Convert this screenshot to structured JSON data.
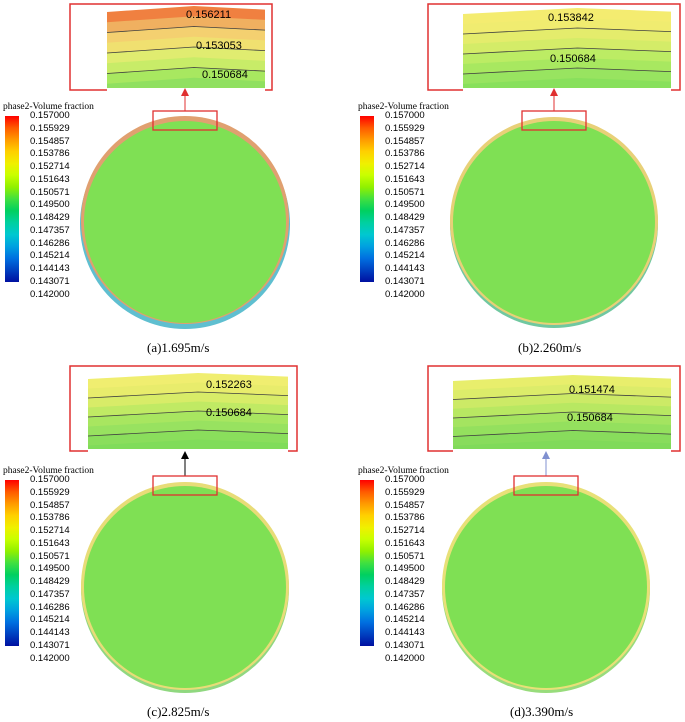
{
  "legend": {
    "title": "phase2-Volume fraction",
    "ticks": [
      "0.157000",
      "0.155929",
      "0.154857",
      "0.153786",
      "0.152714",
      "0.151643",
      "0.150571",
      "0.149500",
      "0.148429",
      "0.147357",
      "0.146286",
      "0.145214",
      "0.144143",
      "0.143071",
      "0.142000"
    ],
    "colors": [
      "#ff0000",
      "#ff5a00",
      "#ff9a00",
      "#ffd000",
      "#f0f000",
      "#c8ff00",
      "#90f000",
      "#40e040",
      "#00d060",
      "#00d0a0",
      "#00c8d0",
      "#00a0e0",
      "#0070e0",
      "#0040c0",
      "#0010a0"
    ]
  },
  "panels": [
    {
      "caption": "(a)1.695m/s",
      "zoom_labels": [
        "0.156211",
        "0.153053",
        "0.150684"
      ],
      "arrow_color": "#e03030",
      "zoom_bands": [
        "#f08040",
        "#f0b060",
        "#f4d070",
        "#f0e070",
        "#e0ec70",
        "#c8ec68",
        "#a8e860",
        "#90e060"
      ]
    },
    {
      "caption": "(b)2.260m/s",
      "zoom_labels": [
        "0.153842",
        "0.150684"
      ],
      "arrow_color": "#e03030",
      "zoom_bands": [
        "#f4ec70",
        "#f0ec70",
        "#e4ec6c",
        "#d4ec68",
        "#bcec64",
        "#a8e860",
        "#98e460",
        "#88e05c"
      ]
    },
    {
      "caption": "(c)2.825m/s",
      "zoom_labels": [
        "0.152263",
        "0.150684"
      ],
      "arrow_color": "#000000",
      "zoom_bands": [
        "#f0ee70",
        "#e8ec6c",
        "#d8ec68",
        "#c0ea64",
        "#a8e660",
        "#98e260",
        "#8ade5c",
        "#80dc5a"
      ]
    },
    {
      "caption": "(d)3.390m/s",
      "zoom_labels": [
        "0.151474",
        "0.150684"
      ],
      "arrow_color": "#8090d0",
      "zoom_bands": [
        "#e8ee6c",
        "#dcec6a",
        "#ccea66",
        "#b8e862",
        "#a4e460",
        "#94e05e",
        "#88dc5c",
        "#80da5a"
      ]
    }
  ]
}
